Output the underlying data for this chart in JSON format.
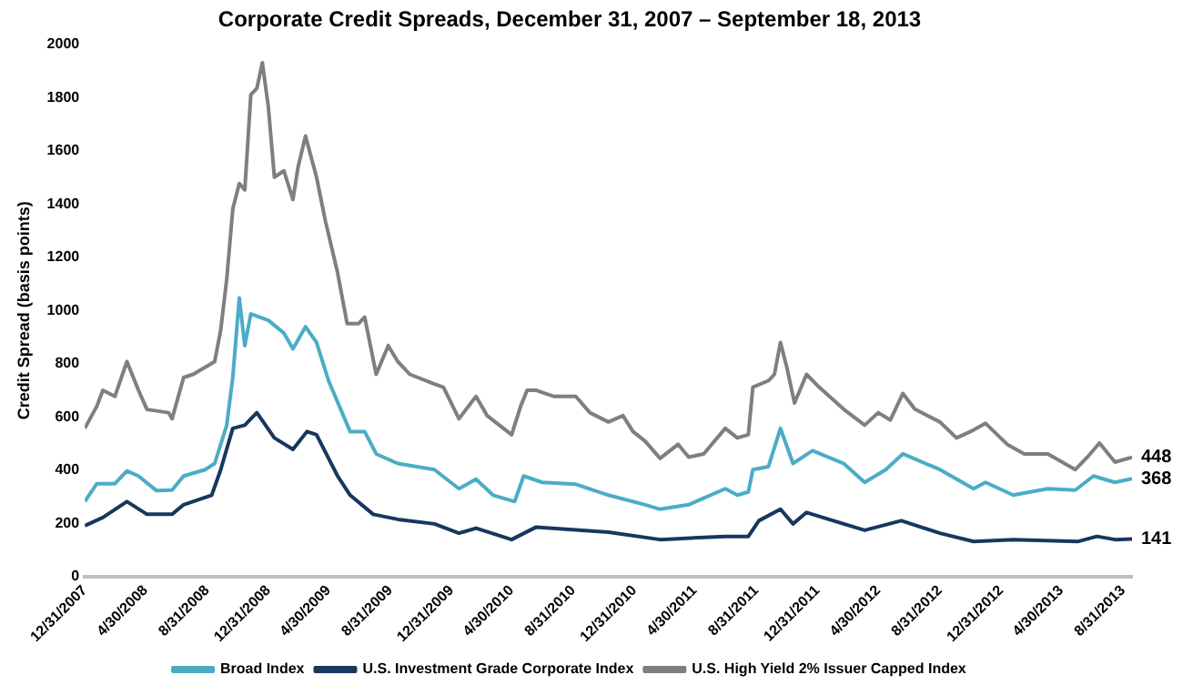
{
  "chart_data": {
    "type": "line",
    "title": "Corporate Credit Spreads, December 31, 2007 – September 18, 2013",
    "ylabel": "Credit Spread (basis points)",
    "ylim": [
      0,
      2000
    ],
    "yticks": [
      0,
      200,
      400,
      600,
      800,
      1000,
      1200,
      1400,
      1600,
      1800,
      2000
    ],
    "xlim": [
      "2007-12-31",
      "2013-09-18"
    ],
    "xticks": [
      {
        "value": "2007-12-31",
        "label": "12/31/2007"
      },
      {
        "value": "2008-04-30",
        "label": "4/30/2008"
      },
      {
        "value": "2008-08-31",
        "label": "8/31/2008"
      },
      {
        "value": "2008-12-31",
        "label": "12/31/2008"
      },
      {
        "value": "2009-04-30",
        "label": "4/30/2009"
      },
      {
        "value": "2009-08-31",
        "label": "8/31/2009"
      },
      {
        "value": "2009-12-31",
        "label": "12/31/2009"
      },
      {
        "value": "2010-04-30",
        "label": "4/30/2010"
      },
      {
        "value": "2010-08-31",
        "label": "8/31/2010"
      },
      {
        "value": "2010-12-31",
        "label": "12/31/2010"
      },
      {
        "value": "2011-04-30",
        "label": "4/30/2011"
      },
      {
        "value": "2011-08-31",
        "label": "8/31/2011"
      },
      {
        "value": "2011-12-31",
        "label": "12/31/2011"
      },
      {
        "value": "2012-04-30",
        "label": "4/30/2012"
      },
      {
        "value": "2012-08-31",
        "label": "8/31/2012"
      },
      {
        "value": "2012-12-31",
        "label": "12/31/2012"
      },
      {
        "value": "2013-04-30",
        "label": "4/30/2013"
      },
      {
        "value": "2013-08-31",
        "label": "8/31/2013"
      }
    ],
    "grid": false,
    "legend": "bottom",
    "marker": "none",
    "line_style": "solid",
    "series": [
      {
        "name": "Broad Index",
        "color": "#4bacc6",
        "x": [
          "2007-12-31",
          "2008-01-24",
          "2008-02-29",
          "2008-03-24",
          "2008-04-16",
          "2008-05-22",
          "2008-06-22",
          "2008-07-15",
          "2008-08-27",
          "2008-09-15",
          "2008-10-09",
          "2008-10-21",
          "2008-11-03",
          "2008-11-14",
          "2008-11-26",
          "2008-12-31",
          "2009-01-31",
          "2009-02-18",
          "2009-03-15",
          "2009-04-06",
          "2009-04-30",
          "2009-06-12",
          "2009-07-11",
          "2009-08-03",
          "2009-09-15",
          "2009-11-27",
          "2010-01-15",
          "2010-02-18",
          "2010-03-24",
          "2010-05-06",
          "2010-05-24",
          "2010-06-30",
          "2010-09-05",
          "2010-11-09",
          "2011-01-21",
          "2011-02-20",
          "2011-04-18",
          "2011-06-30",
          "2011-07-24",
          "2011-08-15",
          "2011-08-24",
          "2011-09-24",
          "2011-10-18",
          "2011-11-12",
          "2011-12-21",
          "2012-02-21",
          "2012-04-03",
          "2012-05-15",
          "2012-06-18",
          "2012-08-31",
          "2012-11-06",
          "2012-11-30",
          "2013-01-24",
          "2013-04-03",
          "2013-05-28",
          "2013-07-03",
          "2013-08-15",
          "2013-09-18"
        ],
        "values": [
          282,
          349,
          349,
          397,
          378,
          323,
          325,
          378,
          402,
          425,
          569,
          748,
          1047,
          868,
          987,
          963,
          915,
          856,
          939,
          880,
          736,
          545,
          545,
          461,
          425,
          402,
          330,
          366,
          306,
          282,
          378,
          354,
          347,
          306,
          270,
          253,
          270,
          330,
          306,
          318,
          402,
          413,
          557,
          425,
          473,
          425,
          354,
          402,
          461,
          402,
          330,
          354,
          306,
          330,
          325,
          378,
          354,
          368
        ]
      },
      {
        "name": "U.S. Investment Grade Corporate Index",
        "color": "#17375e",
        "x": [
          "2007-12-31",
          "2008-02-05",
          "2008-03-24",
          "2008-05-03",
          "2008-06-22",
          "2008-07-15",
          "2008-09-09",
          "2008-09-27",
          "2008-10-21",
          "2008-11-14",
          "2008-12-08",
          "2009-01-12",
          "2009-02-18",
          "2009-03-18",
          "2009-04-06",
          "2009-05-18",
          "2009-06-12",
          "2009-07-28",
          "2009-09-15",
          "2009-11-27",
          "2010-01-15",
          "2010-02-18",
          "2010-04-30",
          "2010-06-18",
          "2010-11-09",
          "2011-02-20",
          "2011-06-30",
          "2011-08-15",
          "2011-09-05",
          "2011-10-18",
          "2011-11-12",
          "2011-12-09",
          "2012-02-21",
          "2012-04-03",
          "2012-06-15",
          "2012-08-31",
          "2012-11-06",
          "2013-01-24",
          "2013-06-03",
          "2013-07-10",
          "2013-08-15",
          "2013-09-18"
        ],
        "values": [
          191,
          222,
          282,
          234,
          234,
          270,
          306,
          402,
          557,
          569,
          616,
          521,
          478,
          545,
          533,
          378,
          306,
          234,
          215,
          198,
          163,
          182,
          139,
          186,
          167,
          139,
          151,
          151,
          210,
          253,
          198,
          241,
          198,
          174,
          210,
          163,
          132,
          139,
          132,
          151,
          139,
          141
        ]
      },
      {
        "name": "U.S. High Yield 2% Issuer Capped Index",
        "color": "#7f7f7f",
        "x": [
          "2007-12-31",
          "2008-01-24",
          "2008-02-05",
          "2008-02-29",
          "2008-03-24",
          "2008-04-16",
          "2008-05-03",
          "2008-06-15",
          "2008-06-22",
          "2008-07-15",
          "2008-08-03",
          "2008-09-15",
          "2008-09-27",
          "2008-10-09",
          "2008-10-21",
          "2008-11-03",
          "2008-11-14",
          "2008-11-26",
          "2008-12-08",
          "2008-12-19",
          "2008-12-31",
          "2009-01-12",
          "2009-01-31",
          "2009-02-18",
          "2009-02-28",
          "2009-03-15",
          "2009-04-06",
          "2009-04-24",
          "2009-05-18",
          "2009-06-06",
          "2009-06-29",
          "2009-07-11",
          "2009-08-03",
          "2009-08-27",
          "2009-09-15",
          "2009-10-09",
          "2009-11-27",
          "2009-12-15",
          "2010-01-15",
          "2010-02-18",
          "2010-03-12",
          "2010-04-30",
          "2010-05-18",
          "2010-05-31",
          "2010-06-18",
          "2010-07-24",
          "2010-09-05",
          "2010-10-03",
          "2010-11-09",
          "2010-12-08",
          "2010-12-28",
          "2011-01-21",
          "2011-02-20",
          "2011-03-28",
          "2011-04-18",
          "2011-05-18",
          "2011-06-30",
          "2011-07-24",
          "2011-08-15",
          "2011-08-24",
          "2011-09-24",
          "2011-10-06",
          "2011-10-18",
          "2011-10-31",
          "2011-11-15",
          "2011-12-09",
          "2012-01-03",
          "2012-02-21",
          "2012-04-03",
          "2012-04-30",
          "2012-05-24",
          "2012-06-18",
          "2012-07-12",
          "2012-08-31",
          "2012-10-03",
          "2012-10-31",
          "2012-11-30",
          "2013-01-12",
          "2013-02-15",
          "2013-04-03",
          "2013-05-28",
          "2013-06-21",
          "2013-07-15",
          "2013-08-15",
          "2013-09-18"
        ],
        "values": [
          557,
          640,
          700,
          677,
          808,
          700,
          628,
          616,
          593,
          748,
          760,
          808,
          927,
          1118,
          1381,
          1477,
          1453,
          1811,
          1835,
          1931,
          1764,
          1501,
          1525,
          1417,
          1537,
          1656,
          1501,
          1334,
          1142,
          951,
          951,
          975,
          760,
          868,
          808,
          760,
          724,
          712,
          593,
          677,
          605,
          533,
          640,
          700,
          700,
          677,
          677,
          616,
          581,
          605,
          545,
          509,
          444,
          497,
          449,
          461,
          557,
          521,
          533,
          712,
          736,
          760,
          880,
          784,
          652,
          760,
          712,
          629,
          569,
          616,
          588,
          688,
          629,
          581,
          521,
          545,
          576,
          497,
          461,
          461,
          402,
          449,
          502,
          430,
          448
        ]
      }
    ],
    "annotations": [
      {
        "text": "448",
        "x": "2013-09-18",
        "y": 448
      },
      {
        "text": "368",
        "x": "2013-09-18",
        "y": 368
      },
      {
        "text": "141",
        "x": "2013-09-18",
        "y": 141
      }
    ]
  }
}
